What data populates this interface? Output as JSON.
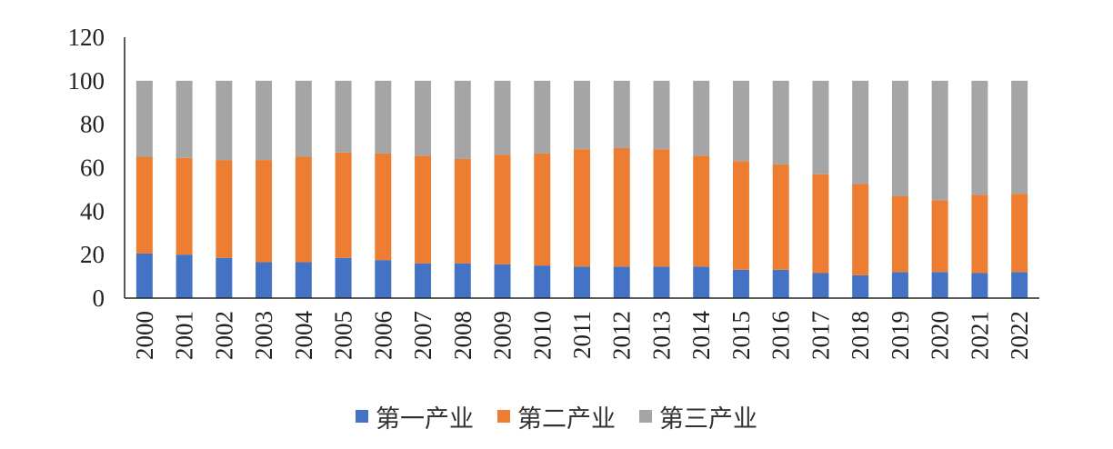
{
  "chart_data": {
    "type": "bar",
    "stacked": true,
    "categories": [
      "2000",
      "2001",
      "2002",
      "2003",
      "2004",
      "2005",
      "2006",
      "2007",
      "2008",
      "2009",
      "2010",
      "2011",
      "2012",
      "2013",
      "2014",
      "2015",
      "2016",
      "2017",
      "2018",
      "2019",
      "2020",
      "2021",
      "2022"
    ],
    "series": [
      {
        "name": "第一产业",
        "color": "#4472c4",
        "values": [
          20.5,
          20.0,
          18.5,
          16.5,
          16.5,
          18.5,
          17.5,
          16.0,
          16.0,
          15.5,
          15.0,
          14.5,
          14.5,
          14.5,
          14.5,
          13.0,
          13.0,
          11.5,
          10.5,
          12.0,
          12.0,
          11.5,
          12.0
        ]
      },
      {
        "name": "第二产业",
        "color": "#ed7d31",
        "values": [
          44.5,
          44.5,
          45.0,
          47.0,
          48.5,
          48.5,
          49.0,
          49.5,
          48.0,
          50.5,
          51.5,
          54.0,
          54.5,
          54.0,
          51.0,
          50.0,
          48.5,
          45.5,
          42.0,
          35.0,
          33.0,
          36.0,
          36.0
        ]
      },
      {
        "name": "第三产业",
        "color": "#a5a5a5",
        "values": [
          35.0,
          35.5,
          36.5,
          36.5,
          35.0,
          33.0,
          33.5,
          34.5,
          36.0,
          34.0,
          33.5,
          31.5,
          31.0,
          31.5,
          34.5,
          37.0,
          38.5,
          43.0,
          47.5,
          53.0,
          55.0,
          52.5,
          52.0
        ]
      }
    ],
    "ylim": [
      0,
      120
    ],
    "yticks": [
      "0",
      "20",
      "40",
      "60",
      "80",
      "100",
      "120"
    ],
    "legend_position": "bottom",
    "grid": false
  }
}
